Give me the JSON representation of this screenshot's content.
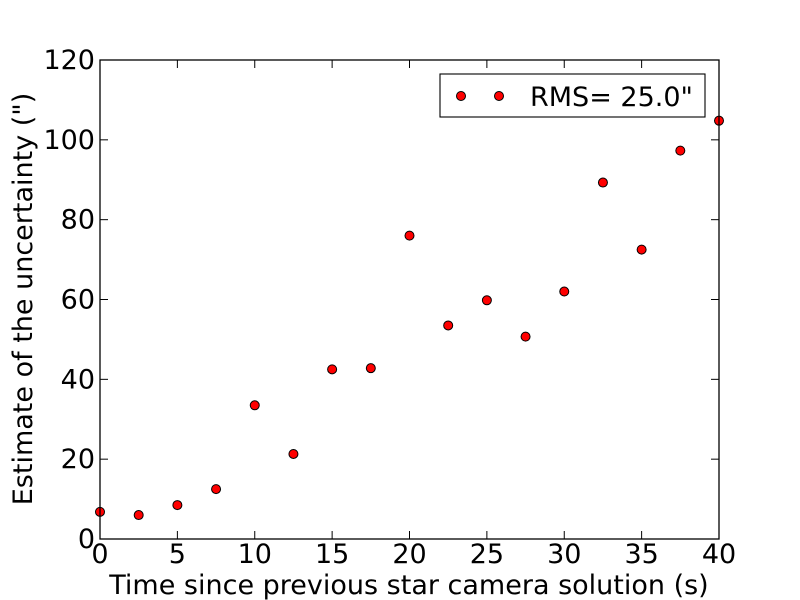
{
  "chart_data": {
    "type": "scatter",
    "title": "",
    "xlabel": "Time since previous star camera solution (s)",
    "ylabel": "Estimate of the uncertainty (\")",
    "xlim": [
      0,
      40
    ],
    "ylim": [
      0,
      120
    ],
    "xticks": [
      0,
      5,
      10,
      15,
      20,
      25,
      30,
      35,
      40
    ],
    "yticks": [
      0,
      20,
      40,
      60,
      80,
      100,
      120
    ],
    "grid": false,
    "legend_position": "top-right",
    "series": [
      {
        "name": "RMS= 25.0\"",
        "color": "#ff0000",
        "edge_color": "#000000",
        "marker": "circle",
        "x": [
          0,
          2.5,
          5,
          7.5,
          10,
          12.5,
          15,
          17.5,
          20,
          22.5,
          25,
          27.5,
          30,
          32.5,
          35,
          37.5,
          40
        ],
        "y": [
          6.8,
          6.0,
          8.5,
          12.5,
          33.5,
          21.3,
          42.5,
          42.8,
          76.0,
          53.5,
          59.8,
          50.7,
          62.0,
          89.3,
          72.5,
          97.3,
          104.8
        ]
      }
    ]
  }
}
